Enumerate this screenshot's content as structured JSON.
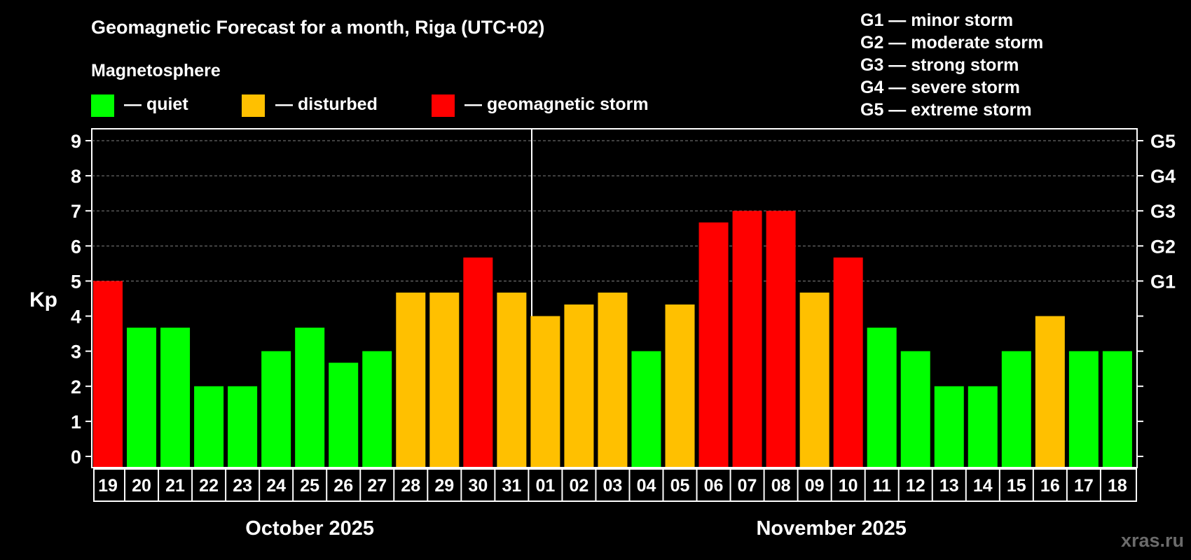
{
  "chart_data": {
    "type": "bar",
    "title": "Geomagnetic Forecast for a month, Riga (UTC+02)",
    "ylabel": "Kp",
    "ylim": [
      0,
      9
    ],
    "yticks": [
      "0",
      "1",
      "2",
      "3",
      "4",
      "5",
      "6",
      "7",
      "8",
      "9"
    ],
    "g_scale": [
      {
        "label": "G1",
        "kp": 5
      },
      {
        "label": "G2",
        "kp": 6
      },
      {
        "label": "G3",
        "kp": 7
      },
      {
        "label": "G4",
        "kp": 8
      },
      {
        "label": "G5",
        "kp": 9
      }
    ],
    "g_legend": [
      "G1 — minor storm",
      "G2 — moderate storm",
      "G3 — strong storm",
      "G4 — severe storm",
      "G5 — extreme storm"
    ],
    "legend": {
      "title": "Magnetosphere",
      "items": [
        {
          "label": "— quiet",
          "color": "#00ff00"
        },
        {
          "label": "— disturbed",
          "color": "#ffc000"
        },
        {
          "label": "— geomagnetic storm",
          "color": "#ff0000"
        }
      ]
    },
    "categories": [
      "19",
      "20",
      "21",
      "22",
      "23",
      "24",
      "25",
      "26",
      "27",
      "28",
      "29",
      "30",
      "31",
      "01",
      "02",
      "03",
      "04",
      "05",
      "06",
      "07",
      "08",
      "09",
      "10",
      "11",
      "12",
      "13",
      "14",
      "15",
      "16",
      "17",
      "18"
    ],
    "values": [
      5,
      3.67,
      3.67,
      2,
      2,
      3,
      3.67,
      2.67,
      3,
      4.67,
      4.67,
      5.67,
      4.67,
      4,
      4.33,
      4.67,
      3,
      4.33,
      6.67,
      7,
      7,
      4.67,
      5.67,
      3.67,
      3,
      2,
      2,
      3,
      4,
      3,
      3
    ],
    "levels": [
      "storm",
      "quiet",
      "quiet",
      "quiet",
      "quiet",
      "quiet",
      "quiet",
      "quiet",
      "quiet",
      "disturbed",
      "disturbed",
      "storm",
      "disturbed",
      "disturbed",
      "disturbed",
      "disturbed",
      "quiet",
      "disturbed",
      "storm",
      "storm",
      "storm",
      "disturbed",
      "storm",
      "quiet",
      "quiet",
      "quiet",
      "quiet",
      "quiet",
      "disturbed",
      "quiet",
      "quiet"
    ],
    "colors": {
      "quiet": "#00ff00",
      "disturbed": "#ffc000",
      "storm": "#ff0000"
    },
    "months": [
      {
        "label": "October 2025",
        "days": 13
      },
      {
        "label": "November 2025",
        "days": 18
      }
    ],
    "grid": true
  },
  "watermark": "xras.ru"
}
